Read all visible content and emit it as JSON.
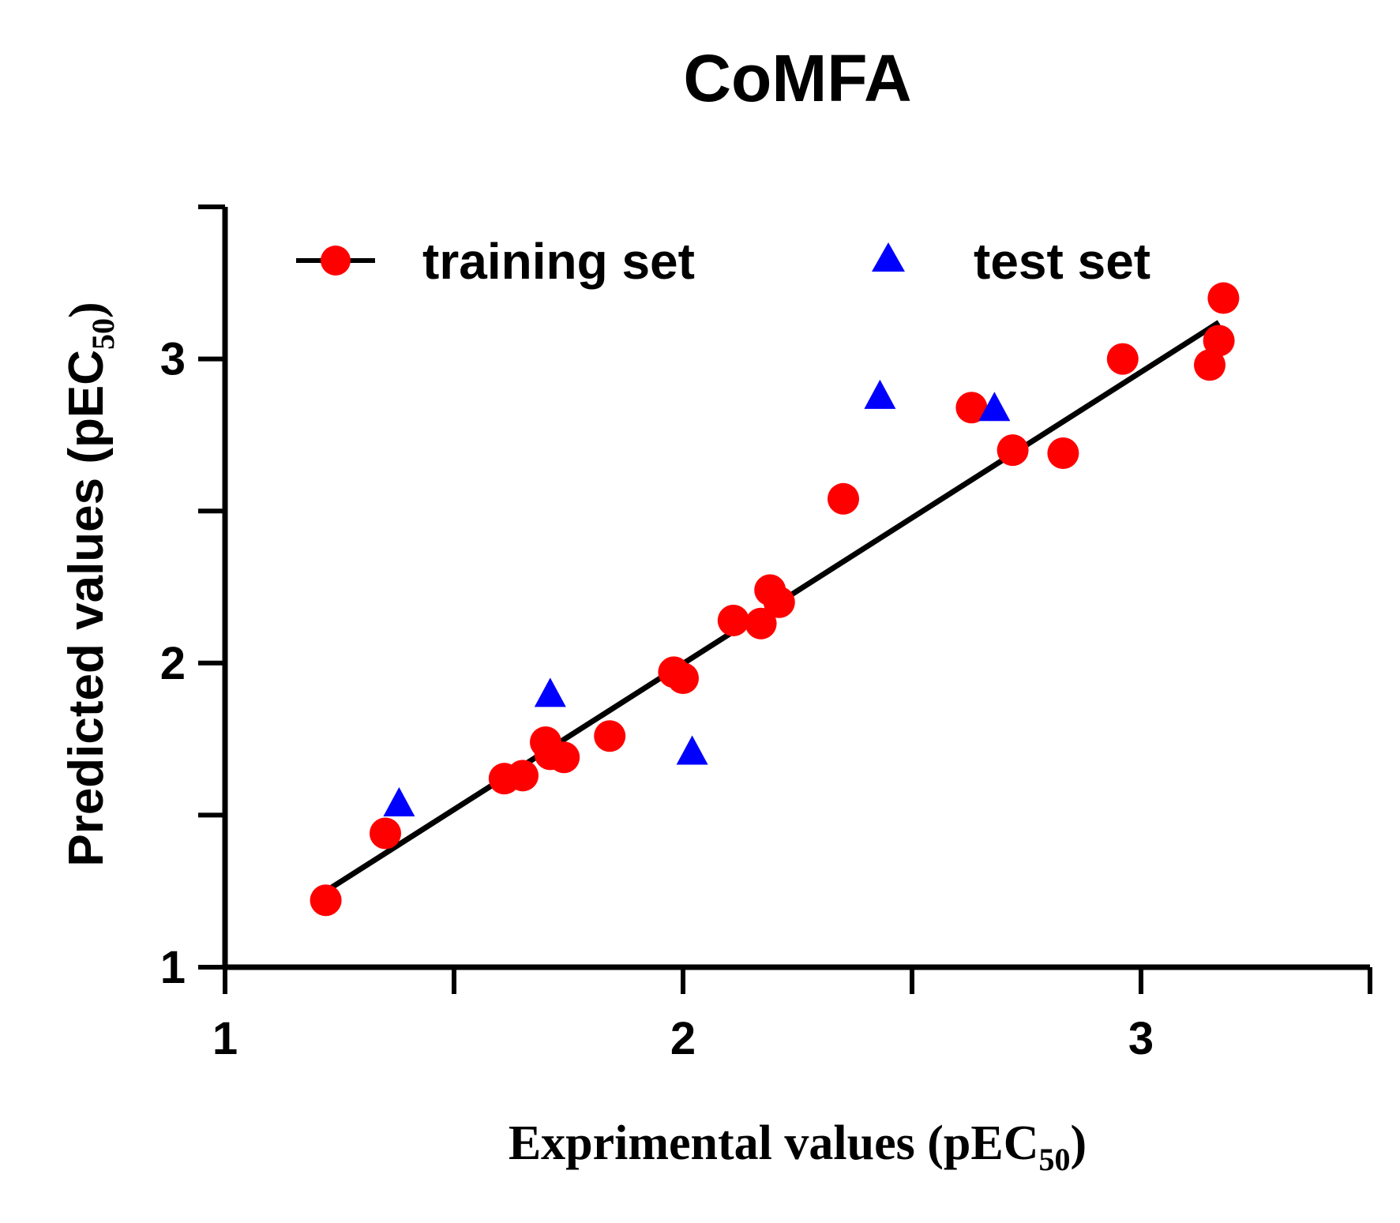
{
  "chart_data": {
    "type": "scatter",
    "title": "CoMFA",
    "xlabel": "Exprimental values (pEC",
    "xlabel_sub": "50",
    "xlabel_close": ")",
    "ylabel": "Predicted values (pEC",
    "ylabel_sub": "50",
    "ylabel_close": ")",
    "xlim": [
      1,
      3.5
    ],
    "ylim": [
      1,
      3.5
    ],
    "x_major_ticks": [
      1,
      1.5,
      2,
      2.5,
      3,
      3.5
    ],
    "y_major_ticks": [
      1,
      1.5,
      2,
      2.5,
      3,
      3.5
    ],
    "x_tick_labels": [
      {
        "value": 1,
        "label": "1"
      },
      {
        "value": 2,
        "label": "2"
      },
      {
        "value": 3,
        "label": "3"
      }
    ],
    "y_tick_labels": [
      {
        "value": 1,
        "label": "1"
      },
      {
        "value": 2,
        "label": "2"
      },
      {
        "value": 3,
        "label": "3"
      }
    ],
    "grid": false,
    "legend_position": "top",
    "fit_line": {
      "x": [
        1.22,
        3.17
      ],
      "y": [
        1.25,
        3.12
      ]
    },
    "series": [
      {
        "name": "training set",
        "marker": "circle",
        "color": "#ff0000",
        "x": [
          1.22,
          1.35,
          1.61,
          1.65,
          1.7,
          1.71,
          1.74,
          1.84,
          1.98,
          2.0,
          2.11,
          2.17,
          2.19,
          2.21,
          2.35,
          2.63,
          2.72,
          2.83,
          2.96,
          3.15,
          3.17,
          3.18
        ],
        "y": [
          1.22,
          1.44,
          1.62,
          1.63,
          1.74,
          1.7,
          1.69,
          1.76,
          1.97,
          1.95,
          2.14,
          2.13,
          2.24,
          2.2,
          2.54,
          2.84,
          2.7,
          2.69,
          3.0,
          2.98,
          3.06,
          3.2
        ]
      },
      {
        "name": "test set",
        "marker": "triangle",
        "color": "#0000ff",
        "x": [
          1.38,
          1.71,
          2.02,
          2.43,
          2.68
        ],
        "y": [
          1.54,
          1.9,
          1.71,
          2.88,
          2.84
        ]
      }
    ]
  }
}
